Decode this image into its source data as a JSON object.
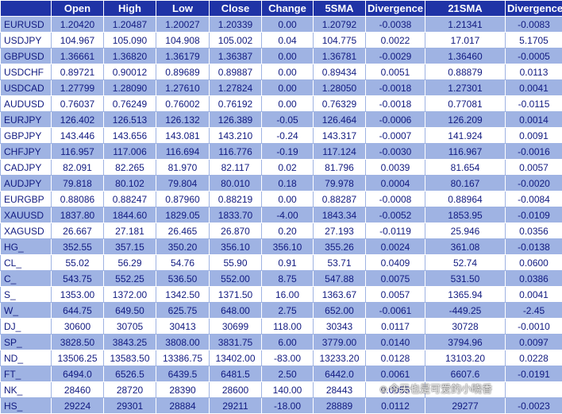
{
  "table": {
    "headers": [
      "",
      "Open",
      "High",
      "Low",
      "Close",
      "Change",
      "5SMA",
      "Divergence",
      "21SMA",
      "Divergence"
    ],
    "rows": [
      [
        "EURUSD",
        "1.20420",
        "1.20487",
        "1.20027",
        "1.20339",
        "0.00",
        "1.20792",
        "-0.0038",
        "1.21341",
        "-0.0083"
      ],
      [
        "USDJPY",
        "104.967",
        "105.090",
        "104.908",
        "105.002",
        "0.04",
        "104.775",
        "0.0022",
        "17.017",
        "5.1705"
      ],
      [
        "GBPUSD",
        "1.36661",
        "1.36820",
        "1.36179",
        "1.36387",
        "0.00",
        "1.36781",
        "-0.0029",
        "1.36460",
        "-0.0005"
      ],
      [
        "USDCHF",
        "0.89721",
        "0.90012",
        "0.89689",
        "0.89887",
        "0.00",
        "0.89434",
        "0.0051",
        "0.88879",
        "0.0113"
      ],
      [
        "USDCAD",
        "1.27799",
        "1.28090",
        "1.27610",
        "1.27824",
        "0.00",
        "1.28050",
        "-0.0018",
        "1.27301",
        "0.0041"
      ],
      [
        "AUDUSD",
        "0.76037",
        "0.76249",
        "0.76002",
        "0.76192",
        "0.00",
        "0.76329",
        "-0.0018",
        "0.77081",
        "-0.0115"
      ],
      [
        "EURJPY",
        "126.402",
        "126.513",
        "126.132",
        "126.389",
        "-0.05",
        "126.464",
        "-0.0006",
        "126.209",
        "0.0014"
      ],
      [
        "GBPJPY",
        "143.446",
        "143.656",
        "143.081",
        "143.210",
        "-0.24",
        "143.317",
        "-0.0007",
        "141.924",
        "0.0091"
      ],
      [
        "CHFJPY",
        "116.957",
        "117.006",
        "116.694",
        "116.776",
        "-0.19",
        "117.124",
        "-0.0030",
        "116.967",
        "-0.0016"
      ],
      [
        "CADJPY",
        "82.091",
        "82.265",
        "81.970",
        "82.117",
        "0.02",
        "81.796",
        "0.0039",
        "81.654",
        "0.0057"
      ],
      [
        "AUDJPY",
        "79.818",
        "80.102",
        "79.804",
        "80.010",
        "0.18",
        "79.978",
        "0.0004",
        "80.167",
        "-0.0020"
      ],
      [
        "EURGBP",
        "0.88086",
        "0.88247",
        "0.87960",
        "0.88219",
        "0.00",
        "0.88287",
        "-0.0008",
        "0.88964",
        "-0.0084"
      ],
      [
        "XAUUSD",
        "1837.80",
        "1844.60",
        "1829.05",
        "1833.70",
        "-4.00",
        "1843.34",
        "-0.0052",
        "1853.95",
        "-0.0109"
      ],
      [
        "XAGUSD",
        "26.667",
        "27.181",
        "26.465",
        "26.870",
        "0.20",
        "27.193",
        "-0.0119",
        "25.946",
        "0.0356"
      ],
      [
        "HG_",
        "352.55",
        "357.15",
        "350.20",
        "356.10",
        "356.10",
        "355.26",
        "0.0024",
        "361.08",
        "-0.0138"
      ],
      [
        "CL_",
        "55.02",
        "56.29",
        "54.76",
        "55.90",
        "0.91",
        "53.71",
        "0.0409",
        "52.74",
        "0.0600"
      ],
      [
        "C_",
        "543.75",
        "552.25",
        "536.50",
        "552.00",
        "8.75",
        "547.88",
        "0.0075",
        "531.50",
        "0.0386"
      ],
      [
        "S_",
        "1353.00",
        "1372.00",
        "1342.50",
        "1371.50",
        "16.00",
        "1363.67",
        "0.0057",
        "1365.94",
        "0.0041"
      ],
      [
        "W_",
        "644.75",
        "649.50",
        "625.75",
        "648.00",
        "2.75",
        "652.00",
        "-0.0061",
        "-449.25",
        "-2.45"
      ],
      [
        "DJ_",
        "30600",
        "30705",
        "30413",
        "30699",
        "118.00",
        "30343",
        "0.0117",
        "30728",
        "-0.0010"
      ],
      [
        "SP_",
        "3828.50",
        "3843.25",
        "3808.00",
        "3831.75",
        "6.00",
        "3779.00",
        "0.0140",
        "3794.96",
        "0.0097"
      ],
      [
        "ND_",
        "13506.25",
        "13583.50",
        "13386.75",
        "13402.00",
        "-83.00",
        "13233.20",
        "0.0128",
        "13103.20",
        "0.0228"
      ],
      [
        "FT_",
        "6494.0",
        "6526.5",
        "6439.5",
        "6481.5",
        "2.50",
        "6442.0",
        "0.0061",
        "6607.6",
        "-0.0191"
      ],
      [
        "NK_",
        "28460",
        "28720",
        "28390",
        "28600",
        "140.00",
        "28443",
        "0.0055",
        "",
        ""
      ],
      [
        "HS_",
        "29224",
        "29301",
        "28884",
        "29211",
        "-18.00",
        "28889",
        "0.0112",
        "29277",
        "-0.0023"
      ]
    ]
  },
  "watermark": {
    "text": "今天也是可爱的小晓香",
    "icon": "weibo-icon"
  }
}
